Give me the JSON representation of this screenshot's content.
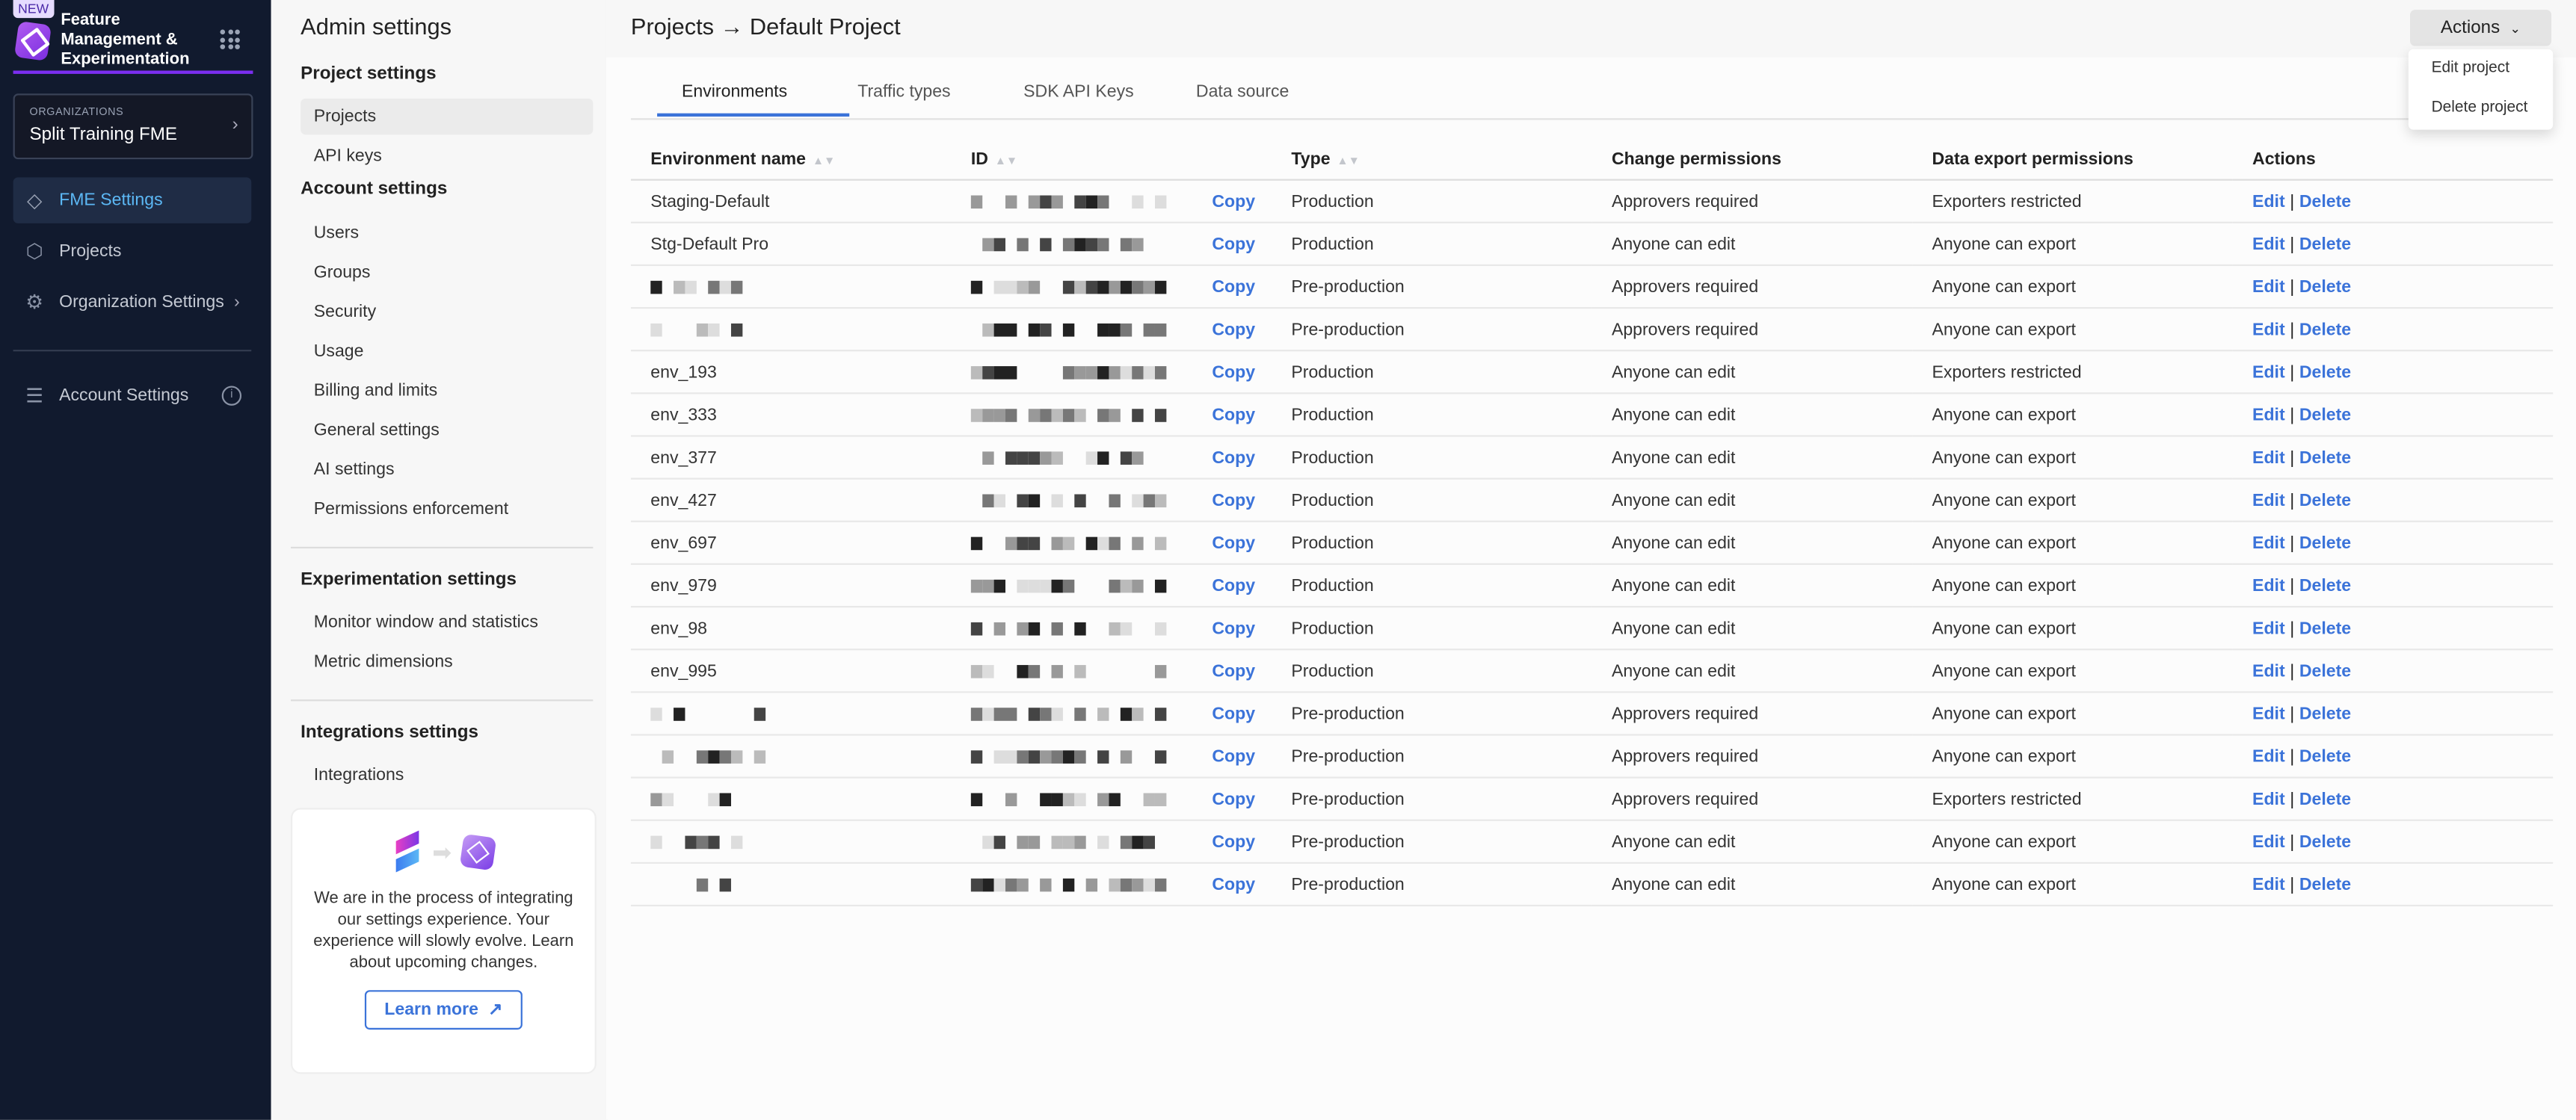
{
  "nav": {
    "badge": "NEW",
    "brand": "Feature Management & Experimentation",
    "org_label": "ORGANIZATIONS",
    "org_name": "Split Training FME",
    "items": [
      {
        "label": "FME Settings",
        "icon": "fme-logo-icon",
        "active": true
      },
      {
        "label": "Projects",
        "icon": "cube-icon"
      },
      {
        "label": "Organization Settings",
        "icon": "gear-icon"
      },
      {
        "label": "Account Settings",
        "icon": "account-settings-icon"
      }
    ]
  },
  "admin": {
    "title": "Admin settings",
    "project_section": "Project settings",
    "project_items": [
      "Projects",
      "API keys"
    ],
    "account_section": "Account settings",
    "account_items": [
      "Users",
      "Groups",
      "Security",
      "Usage",
      "Billing and limits",
      "General settings",
      "AI settings",
      "Permissions enforcement"
    ],
    "experimentation_section": "Experimentation settings",
    "experimentation_items": [
      "Monitor window and statistics",
      "Metric dimensions"
    ],
    "integrations_section": "Integrations settings",
    "integrations_items": [
      "Integrations"
    ],
    "card_text": "We are in the process of integrating our settings experience. Your experience will slowly evolve. Learn about upcoming changes.",
    "card_button": "Learn more"
  },
  "main": {
    "title": "Projects → Default Project",
    "actions_label": "Actions",
    "actions_menu": [
      "Edit project",
      "Delete project"
    ],
    "tabs": [
      "Environments",
      "Traffic types",
      "SDK API Keys",
      "Data source"
    ],
    "active_tab": "Environments",
    "columns": [
      "Environment name",
      "ID",
      "Type",
      "Change permissions",
      "Data export permissions",
      "Actions"
    ],
    "copy_label": "Copy",
    "edit_label": "Edit",
    "delete_label": "Delete",
    "rows": [
      {
        "name": "Staging-Default",
        "type": "Production",
        "change": "Approvers required",
        "export": "Exporters restricted"
      },
      {
        "name": "Stg-Default Pro",
        "type": "Production",
        "change": "Anyone can edit",
        "export": "Anyone can export"
      },
      {
        "name": "",
        "redacted": true,
        "type": "Pre-production",
        "change": "Approvers required",
        "export": "Anyone can export"
      },
      {
        "name": "",
        "redacted": true,
        "type": "Pre-production",
        "change": "Approvers required",
        "export": "Anyone can export"
      },
      {
        "name": "env_193",
        "type": "Production",
        "change": "Anyone can edit",
        "export": "Exporters restricted"
      },
      {
        "name": "env_333",
        "type": "Production",
        "change": "Anyone can edit",
        "export": "Anyone can export"
      },
      {
        "name": "env_377",
        "type": "Production",
        "change": "Anyone can edit",
        "export": "Anyone can export"
      },
      {
        "name": "env_427",
        "type": "Production",
        "change": "Anyone can edit",
        "export": "Anyone can export"
      },
      {
        "name": "env_697",
        "type": "Production",
        "change": "Anyone can edit",
        "export": "Anyone can export"
      },
      {
        "name": "env_979",
        "type": "Production",
        "change": "Anyone can edit",
        "export": "Anyone can export"
      },
      {
        "name": "env_98",
        "type": "Production",
        "change": "Anyone can edit",
        "export": "Anyone can export"
      },
      {
        "name": "env_995",
        "type": "Production",
        "change": "Anyone can edit",
        "export": "Anyone can export"
      },
      {
        "name": "",
        "redacted": true,
        "type": "Pre-production",
        "change": "Approvers required",
        "export": "Anyone can export"
      },
      {
        "name": "",
        "redacted": true,
        "type": "Pre-production",
        "change": "Approvers required",
        "export": "Anyone can export"
      },
      {
        "name": "",
        "redacted": true,
        "type": "Pre-production",
        "change": "Approvers required",
        "export": "Exporters restricted"
      },
      {
        "name": "",
        "redacted": true,
        "type": "Pre-production",
        "change": "Anyone can edit",
        "export": "Anyone can export"
      },
      {
        "name": "",
        "redacted": true,
        "type": "Pre-production",
        "change": "Anyone can edit",
        "export": "Anyone can export"
      }
    ]
  },
  "colors": {
    "sidebar": "#111a2e",
    "accent": "#3b73d9",
    "brand": "#7c2ef0",
    "active_nav_text": "#5cb8f5"
  }
}
